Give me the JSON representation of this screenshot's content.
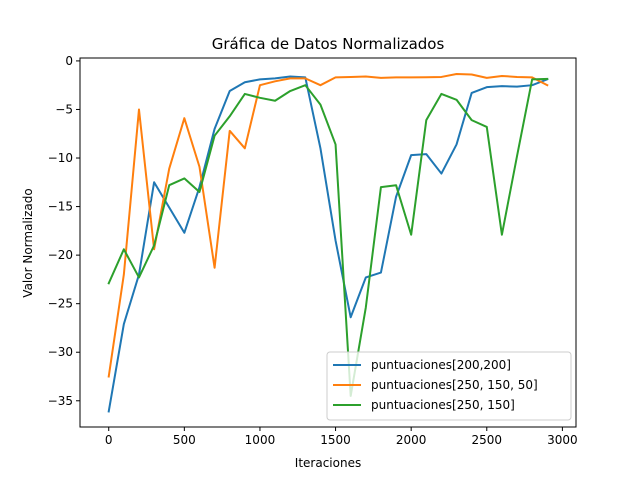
{
  "chart_data": {
    "type": "line",
    "title": "Gráfica de Datos Normalizados",
    "xlabel": "Iteraciones",
    "ylabel": "Valor Normalizado",
    "xlim": [
      -190,
      3090
    ],
    "ylim": [
      -37.7,
      0.3
    ],
    "xticks": [
      0,
      500,
      1000,
      1500,
      2000,
      2500,
      3000
    ],
    "yticks": [
      0,
      -5,
      -10,
      -15,
      -20,
      -25,
      -30,
      -35
    ],
    "grid": false,
    "legend_position": "lower right",
    "x": [
      0,
      100,
      200,
      300,
      400,
      500,
      600,
      700,
      800,
      900,
      1000,
      1100,
      1200,
      1300,
      1400,
      1500,
      1600,
      1700,
      1800,
      1900,
      2000,
      2100,
      2200,
      2300,
      2400,
      2500,
      2600,
      2700,
      2800,
      2900
    ],
    "series": [
      {
        "name": "puntuaciones[200,200]",
        "color": "#1f77b4",
        "values": [
          -36.1,
          -27.1,
          -22.0,
          -12.5,
          -15.1,
          -17.7,
          -13.0,
          -7.0,
          -3.1,
          -2.2,
          -1.9,
          -1.8,
          -1.6,
          -1.7,
          -9.0,
          -18.5,
          -26.4,
          -22.3,
          -21.8,
          -14.0,
          -9.7,
          -9.6,
          -11.6,
          -8.6,
          -3.3,
          -2.7,
          -2.6,
          -2.65,
          -2.5,
          -1.9
        ]
      },
      {
        "name": "puntuaciones[250, 150, 50]",
        "color": "#ff7f0e",
        "values": [
          -32.5,
          -22.0,
          -5.0,
          -19.4,
          -11.1,
          -5.9,
          -10.9,
          -21.3,
          -7.2,
          -9.0,
          -2.5,
          -2.1,
          -1.8,
          -1.8,
          -2.5,
          -1.7,
          -1.65,
          -1.6,
          -1.75,
          -1.7,
          -1.7,
          -1.68,
          -1.65,
          -1.35,
          -1.4,
          -1.75,
          -1.55,
          -1.65,
          -1.7,
          -2.5
        ]
      },
      {
        "name": "puntuaciones[250, 150]",
        "color": "#2ca02c",
        "values": [
          -22.9,
          -19.4,
          -22.3,
          -19.0,
          -12.8,
          -12.1,
          -13.5,
          -7.7,
          -5.7,
          -3.4,
          -3.8,
          -4.1,
          -3.1,
          -2.5,
          -4.5,
          -8.6,
          -34.5,
          -25.4,
          -13.0,
          -12.8,
          -17.9,
          -6.1,
          -3.4,
          -4.0,
          -6.1,
          -6.8,
          -17.9,
          -9.8,
          -1.9,
          -1.85
        ]
      }
    ]
  }
}
